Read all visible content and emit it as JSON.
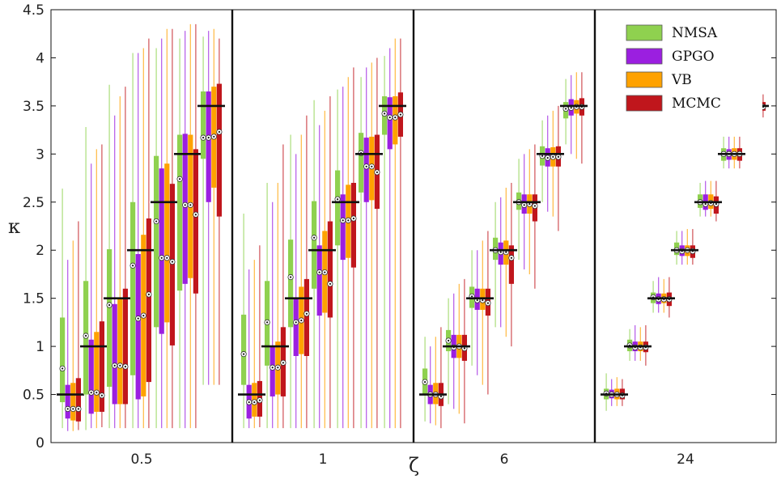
{
  "chart_data": {
    "type": "box",
    "xlabel": "ζ",
    "ylabel": "κ",
    "ylim": [
      0,
      4.5
    ],
    "yticks": [
      0,
      0.5,
      1,
      1.5,
      2,
      2.5,
      3,
      3.5,
      4,
      4.5
    ],
    "ytick_labels": [
      "0",
      "0.5",
      "1",
      "1.5",
      "2",
      "2.5",
      "3",
      "3.5",
      "4",
      "4.5"
    ],
    "groups": [
      "0.5",
      "1",
      "6",
      "24"
    ],
    "true_kappa": [
      0.5,
      1,
      1.5,
      2,
      2.5,
      3,
      3.5
    ],
    "grid": false,
    "legend_position": "top-right",
    "series": [
      {
        "name": "NMSA",
        "color": "#8fd14f"
      },
      {
        "name": "GPGO",
        "color": "#9b1fe0"
      },
      {
        "name": "VB",
        "color": "#ffa200"
      },
      {
        "name": "MCMC",
        "color": "#c0161c"
      }
    ],
    "boxes": [
      [
        [
          [
            0.15,
            0.42,
            0.55,
            1.3,
            2.64,
            0.77
          ],
          [
            0.12,
            0.25,
            0.35,
            0.6,
            1.9,
            0.35
          ],
          [
            0.12,
            0.23,
            0.35,
            0.62,
            2.1,
            0.35
          ],
          [
            0.13,
            0.22,
            0.35,
            0.67,
            2.3,
            0.35
          ]
        ],
        [
          [
            0.13,
            0.5,
            0.75,
            1.68,
            3.28,
            1.11
          ],
          [
            0.15,
            0.3,
            0.55,
            1.07,
            2.9,
            0.52
          ],
          [
            0.15,
            0.32,
            0.55,
            1.15,
            3.05,
            0.52
          ],
          [
            0.16,
            0.32,
            0.55,
            1.26,
            3.1,
            0.49
          ]
        ],
        [
          [
            0.15,
            0.58,
            1.1,
            2.01,
            3.72,
            1.43
          ],
          [
            0.15,
            0.4,
            0.8,
            1.44,
            3.4,
            0.8
          ],
          [
            0.15,
            0.4,
            0.8,
            1.5,
            3.6,
            0.8
          ],
          [
            0.15,
            0.4,
            0.8,
            1.6,
            3.7,
            0.79
          ]
        ],
        [
          [
            0.15,
            0.7,
            1.5,
            2.5,
            4.05,
            1.84
          ],
          [
            0.15,
            0.45,
            1.05,
            1.96,
            4.05,
            1.29
          ],
          [
            0.15,
            0.48,
            1.1,
            2.16,
            4.1,
            1.32
          ],
          [
            0.15,
            0.63,
            1.2,
            2.33,
            4.2,
            1.54
          ]
        ],
        [
          [
            0.15,
            1.2,
            2.0,
            2.98,
            4.1,
            2.3
          ],
          [
            0.15,
            1.13,
            1.95,
            2.85,
            4.2,
            1.92
          ],
          [
            0.15,
            1.25,
            2.0,
            2.9,
            4.3,
            1.92
          ],
          [
            0.15,
            1.01,
            1.9,
            2.69,
            4.3,
            1.88
          ]
        ],
        [
          [
            0.15,
            1.58,
            2.6,
            3.2,
            4.2,
            2.74
          ],
          [
            0.15,
            1.65,
            2.47,
            3.21,
            4.28,
            2.47
          ],
          [
            0.15,
            1.71,
            2.47,
            3.2,
            4.35,
            2.47
          ],
          [
            0.15,
            1.55,
            2.37,
            3.05,
            4.35,
            2.37
          ]
        ],
        [
          [
            0.6,
            2.95,
            3.3,
            3.65,
            4.22,
            3.17
          ],
          [
            0.6,
            2.5,
            3.18,
            3.65,
            4.28,
            3.17
          ],
          [
            0.6,
            2.65,
            3.18,
            3.7,
            4.3,
            3.18
          ],
          [
            0.6,
            2.35,
            3.23,
            3.73,
            4.2,
            3.23
          ]
        ]
      ],
      [
        [
          [
            0.15,
            0.6,
            0.75,
            1.33,
            2.38,
            0.92
          ],
          [
            0.15,
            0.25,
            0.42,
            0.6,
            1.8,
            0.42
          ],
          [
            0.15,
            0.27,
            0.42,
            0.62,
            1.9,
            0.42
          ],
          [
            0.16,
            0.27,
            0.44,
            0.64,
            2.05,
            0.44
          ]
        ],
        [
          [
            0.15,
            0.8,
            1.1,
            1.68,
            2.7,
            1.25
          ],
          [
            0.15,
            0.48,
            0.78,
            1.0,
            2.5,
            0.78
          ],
          [
            0.15,
            0.5,
            0.78,
            1.05,
            2.7,
            0.78
          ],
          [
            0.15,
            0.48,
            0.83,
            1.2,
            3.1,
            0.83
          ]
        ],
        [
          [
            0.15,
            1.2,
            1.55,
            2.11,
            3.2,
            1.72
          ],
          [
            0.15,
            0.9,
            1.25,
            1.5,
            3.0,
            1.25
          ],
          [
            0.15,
            0.92,
            1.27,
            1.62,
            3.2,
            1.27
          ],
          [
            0.15,
            0.9,
            1.34,
            1.7,
            3.4,
            1.34
          ]
        ],
        [
          [
            0.15,
            1.6,
            1.95,
            2.51,
            3.56,
            2.13
          ],
          [
            0.15,
            1.32,
            1.77,
            2.05,
            3.3,
            1.77
          ],
          [
            0.15,
            1.35,
            1.77,
            2.2,
            3.45,
            1.77
          ],
          [
            0.15,
            1.3,
            1.65,
            2.3,
            3.6,
            1.65
          ]
        ],
        [
          [
            0.15,
            2.05,
            2.4,
            2.83,
            3.67,
            2.53
          ],
          [
            0.15,
            1.9,
            2.31,
            2.58,
            3.7,
            2.31
          ],
          [
            0.15,
            1.92,
            2.31,
            2.68,
            3.8,
            2.31
          ],
          [
            0.15,
            1.82,
            2.33,
            2.7,
            3.9,
            2.33
          ]
        ],
        [
          [
            0.15,
            2.6,
            2.9,
            3.22,
            3.8,
            3.01
          ],
          [
            0.15,
            2.5,
            2.87,
            3.17,
            3.9,
            2.87
          ],
          [
            0.15,
            2.52,
            2.87,
            3.18,
            3.95,
            2.87
          ],
          [
            0.15,
            2.43,
            2.81,
            3.2,
            4.0,
            2.81
          ]
        ],
        [
          [
            0.15,
            3.2,
            3.35,
            3.6,
            4.02,
            3.42
          ],
          [
            0.15,
            3.05,
            3.38,
            3.59,
            4.1,
            3.38
          ],
          [
            0.15,
            3.1,
            3.38,
            3.6,
            4.2,
            3.38
          ],
          [
            0.15,
            3.18,
            3.41,
            3.64,
            4.2,
            3.41
          ]
        ]
      ],
      [
        [
          [
            0.22,
            0.5,
            0.6,
            0.77,
            1.1,
            0.63
          ],
          [
            0.2,
            0.4,
            0.5,
            0.6,
            1.0,
            0.5
          ],
          [
            0.18,
            0.4,
            0.5,
            0.62,
            1.1,
            0.5
          ],
          [
            0.15,
            0.38,
            0.48,
            0.62,
            1.2,
            0.48
          ]
        ],
        [
          [
            0.4,
            0.95,
            1.05,
            1.17,
            1.5,
            1.06
          ],
          [
            0.35,
            0.88,
            0.99,
            1.12,
            1.55,
            0.99
          ],
          [
            0.3,
            0.88,
            1.0,
            1.12,
            1.65,
            1.0
          ],
          [
            0.2,
            0.85,
            0.98,
            1.12,
            1.7,
            0.98
          ]
        ],
        [
          [
            0.8,
            1.4,
            1.52,
            1.62,
            2.0,
            1.52
          ],
          [
            0.7,
            1.38,
            1.48,
            1.6,
            2.0,
            1.48
          ],
          [
            0.6,
            1.38,
            1.48,
            1.6,
            2.1,
            1.48
          ],
          [
            0.5,
            1.32,
            1.45,
            1.6,
            2.2,
            1.45
          ]
        ],
        [
          [
            1.2,
            1.9,
            2.0,
            2.13,
            2.5,
            2.0
          ],
          [
            1.2,
            1.85,
            1.98,
            2.08,
            2.55,
            1.98
          ],
          [
            1.1,
            1.85,
            1.98,
            2.1,
            2.65,
            1.98
          ],
          [
            1.0,
            1.65,
            1.92,
            2.05,
            2.7,
            1.92
          ]
        ],
        [
          [
            1.9,
            2.42,
            2.5,
            2.6,
            2.95,
            2.5
          ],
          [
            1.8,
            2.38,
            2.47,
            2.58,
            3.0,
            2.47
          ],
          [
            1.75,
            2.38,
            2.48,
            2.58,
            3.05,
            2.48
          ],
          [
            1.6,
            2.3,
            2.46,
            2.58,
            3.1,
            2.46
          ]
        ],
        [
          [
            2.5,
            2.88,
            2.97,
            3.08,
            3.35,
            2.98
          ],
          [
            2.4,
            2.87,
            2.96,
            3.06,
            3.4,
            2.96
          ],
          [
            2.35,
            2.87,
            2.97,
            3.07,
            3.45,
            2.97
          ],
          [
            2.2,
            2.87,
            2.97,
            3.08,
            3.5,
            2.97
          ]
        ],
        [
          [
            3.1,
            3.37,
            3.45,
            3.54,
            3.78,
            3.47
          ],
          [
            3.0,
            3.4,
            3.48,
            3.57,
            3.82,
            3.48
          ],
          [
            2.95,
            3.42,
            3.49,
            3.56,
            3.85,
            3.49
          ],
          [
            2.9,
            3.4,
            3.49,
            3.58,
            3.85,
            3.49
          ]
        ]
      ],
      [
        [
          [
            0.33,
            0.45,
            0.5,
            0.56,
            0.72,
            0.51
          ],
          [
            0.38,
            0.46,
            0.5,
            0.55,
            0.66,
            0.5
          ],
          [
            0.38,
            0.45,
            0.5,
            0.56,
            0.68,
            0.5
          ],
          [
            0.38,
            0.45,
            0.49,
            0.56,
            0.66,
            0.49
          ]
        ],
        [
          [
            0.85,
            0.95,
            1.0,
            1.07,
            1.18,
            1.01
          ],
          [
            0.85,
            0.95,
            0.99,
            1.05,
            1.22,
            0.99
          ],
          [
            0.85,
            0.95,
            0.99,
            1.05,
            1.2,
            0.99
          ],
          [
            0.8,
            0.94,
            0.99,
            1.05,
            1.22,
            0.99
          ]
        ],
        [
          [
            1.35,
            1.45,
            1.5,
            1.56,
            1.68,
            1.51
          ],
          [
            1.35,
            1.44,
            1.49,
            1.55,
            1.72,
            1.49
          ],
          [
            1.35,
            1.45,
            1.49,
            1.55,
            1.7,
            1.49
          ],
          [
            1.3,
            1.42,
            1.49,
            1.56,
            1.72,
            1.49
          ]
        ],
        [
          [
            1.85,
            1.95,
            2.0,
            2.08,
            2.2,
            2.0
          ],
          [
            1.85,
            1.94,
            1.99,
            2.05,
            2.2,
            1.99
          ],
          [
            1.85,
            1.94,
            2.0,
            2.05,
            2.22,
            2.0
          ],
          [
            1.85,
            1.92,
            1.99,
            2.05,
            2.22,
            1.99
          ]
        ],
        [
          [
            2.35,
            2.44,
            2.5,
            2.58,
            2.7,
            2.5
          ],
          [
            2.35,
            2.42,
            2.48,
            2.58,
            2.72,
            2.48
          ],
          [
            2.35,
            2.43,
            2.49,
            2.58,
            2.72,
            2.49
          ],
          [
            2.3,
            2.38,
            2.48,
            2.56,
            2.72,
            2.48
          ]
        ],
        [
          [
            2.85,
            2.93,
            3.0,
            3.06,
            3.18,
            3.0
          ],
          [
            2.85,
            2.94,
            3.0,
            3.05,
            3.18,
            3.0
          ],
          [
            2.85,
            2.94,
            3.0,
            3.06,
            3.18,
            3.0
          ],
          [
            2.85,
            2.93,
            3.0,
            3.06,
            3.18,
            3.0
          ]
        ],
        [
          [
            3.4,
            3.45,
            3.5,
            3.53,
            3.62,
            3.49
          ],
          [
            3.4,
            3.45,
            3.49,
            3.53,
            3.62,
            3.49
          ],
          [
            3.38,
            3.45,
            3.49,
            3.54,
            3.62,
            3.49
          ],
          [
            3.38,
            3.45,
            3.49,
            3.54,
            3.62,
            3.49
          ]
        ]
      ]
    ]
  }
}
